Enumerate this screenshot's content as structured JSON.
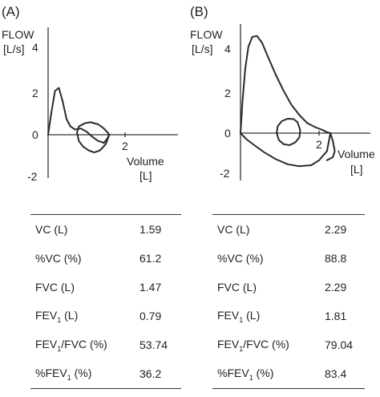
{
  "chart_data": [
    {
      "type": "line",
      "panel_label": "(A)",
      "ylabel": "FLOW [L/s]",
      "ylabel_line1": "FLOW",
      "ylabel_line2": "[L/s]",
      "xlabel": "Volume [L]",
      "xlabel_line1": "Volume",
      "xlabel_line2": "[L]",
      "y_ticks": [
        "4",
        "2",
        "0",
        "-2"
      ],
      "x_ticks": [
        "2"
      ],
      "xlim": [
        0,
        3
      ],
      "ylim": [
        -2.5,
        5.5
      ],
      "series": [
        {
          "x": [
            0.0,
            0.08,
            0.18,
            0.28,
            0.38,
            0.48,
            0.58,
            0.7,
            0.85,
            1.0,
            1.15,
            1.3,
            1.4,
            1.45,
            1.55,
            1.59
          ],
          "y": [
            0.0,
            1.0,
            2.1,
            2.25,
            1.6,
            0.75,
            0.4,
            0.25,
            0.3,
            0.15,
            -0.1,
            -0.3,
            -0.35,
            -0.4,
            -0.15,
            0.0
          ]
        },
        {
          "x": [
            1.59,
            1.5,
            1.35,
            1.2,
            1.05,
            0.9,
            0.8,
            0.75,
            0.8,
            0.95,
            1.1,
            1.3,
            1.45,
            1.55,
            1.59
          ],
          "y": [
            0.0,
            -0.45,
            -0.75,
            -0.85,
            -0.75,
            -0.55,
            -0.3,
            0.1,
            0.4,
            0.55,
            0.6,
            0.5,
            0.3,
            0.1,
            0.0
          ]
        }
      ]
    },
    {
      "type": "line",
      "panel_label": "(B)",
      "ylabel": "FLOW [L/s]",
      "ylabel_line1": "FLOW",
      "ylabel_line2": "[L/s]",
      "xlabel": "Volume [L]",
      "xlabel_line1": "Volume",
      "xlabel_line2": "[L]",
      "y_ticks": [
        "4",
        "2",
        "0",
        "-2"
      ],
      "x_ticks": [
        "2"
      ],
      "xlim": [
        0,
        3
      ],
      "ylim": [
        -2.5,
        5.5
      ],
      "series": [
        {
          "x": [
            0.0,
            0.05,
            0.12,
            0.2,
            0.3,
            0.42,
            0.55,
            0.7,
            0.9,
            1.1,
            1.3,
            1.5,
            1.7,
            1.9,
            2.1,
            2.2,
            2.29
          ],
          "y": [
            0.0,
            1.6,
            3.2,
            4.3,
            4.8,
            4.85,
            4.5,
            3.8,
            2.9,
            2.1,
            1.4,
            0.9,
            0.5,
            0.3,
            0.15,
            0.05,
            0.0
          ]
        },
        {
          "x": [
            2.29,
            2.2,
            2.0,
            1.8,
            1.5,
            1.2,
            0.9,
            0.6,
            0.35,
            0.15,
            0.05,
            0.0
          ],
          "y": [
            0.0,
            -0.9,
            -1.35,
            -1.6,
            -1.65,
            -1.55,
            -1.3,
            -0.95,
            -0.6,
            -0.3,
            -0.1,
            0.0
          ]
        },
        {
          "x": [
            1.45,
            1.35,
            1.2,
            1.05,
            0.95,
            0.92,
            0.98,
            1.1,
            1.25,
            1.4,
            1.5,
            1.52,
            1.45
          ],
          "y": [
            0.55,
            0.7,
            0.72,
            0.6,
            0.35,
            0.0,
            -0.35,
            -0.55,
            -0.6,
            -0.45,
            -0.2,
            0.15,
            0.55
          ]
        },
        {
          "x": [
            2.29,
            2.35,
            2.4,
            2.35,
            2.2
          ],
          "y": [
            0.0,
            -0.4,
            -0.9,
            -1.2,
            -1.35
          ]
        }
      ]
    }
  ],
  "tables": [
    {
      "rows": [
        {
          "label": "VC (L)",
          "value": "1.59"
        },
        {
          "label": "%VC (%)",
          "value": "61.2"
        },
        {
          "label": "FVC (L)",
          "value": "1.47"
        },
        {
          "label": "FEV1 (L)",
          "label_pre": "FEV",
          "label_sub": "1",
          "label_post": " (L)",
          "value": "0.79"
        },
        {
          "label": "FEV1/FVC (%)",
          "label_pre": "FEV",
          "label_sub": "1",
          "label_post": "/FVC (%)",
          "value": "53.74"
        },
        {
          "label": "%FEV1 (%)",
          "label_pre": "%FEV",
          "label_sub": "1",
          "label_post": " (%)",
          "value": "36.2"
        }
      ]
    },
    {
      "rows": [
        {
          "label": "VC (L)",
          "value": "2.29"
        },
        {
          "label": "%VC (%)",
          "value": "88.8"
        },
        {
          "label": "FVC (L)",
          "value": "2.29"
        },
        {
          "label": "FEV1 (L)",
          "label_pre": "FEV",
          "label_sub": "1",
          "label_post": " (L)",
          "value": "1.81"
        },
        {
          "label": "FEV1/FVC (%)",
          "label_pre": "FEV",
          "label_sub": "1",
          "label_post": "/FVC (%)",
          "value": "79.04"
        },
        {
          "label": "%FEV1 (%)",
          "label_pre": "%FEV",
          "label_sub": "1",
          "label_post": " (%)",
          "value": "83.4"
        }
      ]
    }
  ]
}
